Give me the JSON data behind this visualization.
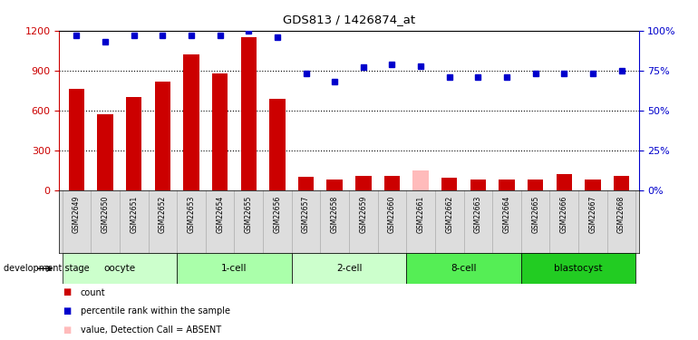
{
  "title": "GDS813 / 1426874_at",
  "samples": [
    "GSM22649",
    "GSM22650",
    "GSM22651",
    "GSM22652",
    "GSM22653",
    "GSM22654",
    "GSM22655",
    "GSM22656",
    "GSM22657",
    "GSM22658",
    "GSM22659",
    "GSM22660",
    "GSM22661",
    "GSM22662",
    "GSM22663",
    "GSM22664",
    "GSM22665",
    "GSM22666",
    "GSM22667",
    "GSM22668"
  ],
  "counts": [
    760,
    570,
    700,
    820,
    1020,
    880,
    1150,
    690,
    100,
    80,
    110,
    110,
    150,
    95,
    85,
    80,
    85,
    120,
    85,
    110
  ],
  "absent_count_idx": [
    12
  ],
  "percentile_ranks": [
    97,
    93,
    97,
    97,
    97,
    97,
    100,
    96,
    73,
    68,
    77,
    79,
    78,
    71,
    71,
    71,
    73,
    73,
    73,
    75
  ],
  "absent_rank_idx": [],
  "groups": [
    {
      "label": "oocyte",
      "start": 0,
      "end": 3,
      "color": "#ccffcc"
    },
    {
      "label": "1-cell",
      "start": 4,
      "end": 7,
      "color": "#aaffaa"
    },
    {
      "label": "2-cell",
      "start": 8,
      "end": 11,
      "color": "#ccffcc"
    },
    {
      "label": "8-cell",
      "start": 12,
      "end": 15,
      "color": "#55ee55"
    },
    {
      "label": "blastocyst",
      "start": 16,
      "end": 19,
      "color": "#22cc22"
    }
  ],
  "ylim_left": [
    0,
    1200
  ],
  "ylim_right": [
    0,
    100
  ],
  "yticks_left": [
    0,
    300,
    600,
    900,
    1200
  ],
  "yticks_right": [
    0,
    25,
    50,
    75,
    100
  ],
  "bar_color": "#cc0000",
  "absent_bar_color": "#ffbbbb",
  "dot_color": "#0000cc",
  "absent_dot_color": "#aaaaff",
  "grid_color": "#000000"
}
